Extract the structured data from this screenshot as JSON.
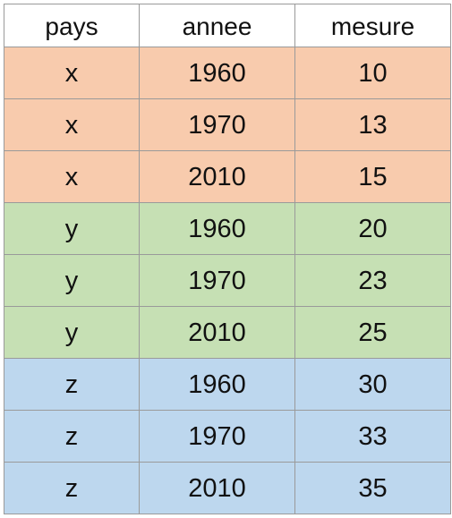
{
  "colors": {
    "group_x": "#f8cbad",
    "group_y": "#c6e0b4",
    "group_z": "#bdd7ee",
    "gridline": "#9a9a9a"
  },
  "table": {
    "headers": [
      "pays",
      "annee",
      "mesure"
    ],
    "rows": [
      {
        "pays": "x",
        "annee": "1960",
        "mesure": "10",
        "group": "group_x"
      },
      {
        "pays": "x",
        "annee": "1970",
        "mesure": "13",
        "group": "group_x"
      },
      {
        "pays": "x",
        "annee": "2010",
        "mesure": "15",
        "group": "group_x"
      },
      {
        "pays": "y",
        "annee": "1960",
        "mesure": "20",
        "group": "group_y"
      },
      {
        "pays": "y",
        "annee": "1970",
        "mesure": "23",
        "group": "group_y"
      },
      {
        "pays": "y",
        "annee": "2010",
        "mesure": "25",
        "group": "group_y"
      },
      {
        "pays": "z",
        "annee": "1960",
        "mesure": "30",
        "group": "group_z"
      },
      {
        "pays": "z",
        "annee": "1970",
        "mesure": "33",
        "group": "group_z"
      },
      {
        "pays": "z",
        "annee": "2010",
        "mesure": "35",
        "group": "group_z"
      }
    ]
  }
}
